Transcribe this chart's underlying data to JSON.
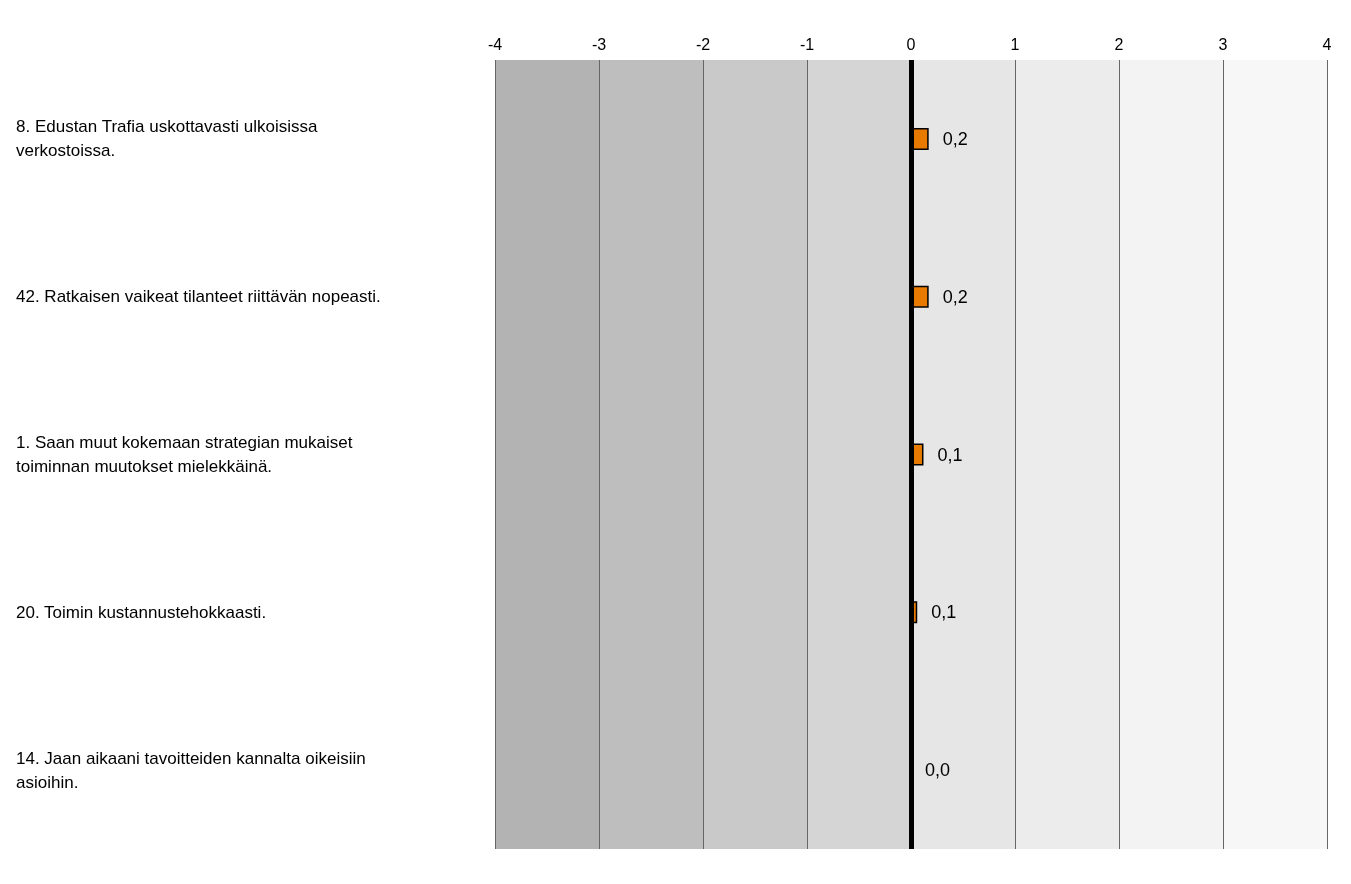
{
  "chart_data": {
    "type": "bar",
    "orientation": "horizontal",
    "categories": [
      "8. Edustan Trafia uskottavasti ulkoisissa verkostoissa.",
      "42. Ratkaisen vaikeat tilanteet riittävän nopeasti.",
      "1. Saan muut kokemaan strategian mukaiset toiminnan muutokset mielekkäinä.",
      "20. Toimin kustannustehokkaasti.",
      "14. Jaan aikaani tavoitteiden kannalta oikeisiin asioihin."
    ],
    "values": [
      0.17,
      0.17,
      0.12,
      0.06,
      0.0
    ],
    "value_labels": [
      "0,2",
      "0,2",
      "0,1",
      "0,1",
      "0,0"
    ],
    "color": "#e87a00",
    "xlim": [
      -4,
      4
    ],
    "xticks": [
      -4,
      -3,
      -2,
      -1,
      0,
      1,
      2,
      3,
      4
    ],
    "grid": "x",
    "ref_lines": [
      {
        "axis": "x",
        "value": 0,
        "color": "#000000"
      }
    ],
    "bands": [
      {
        "axis": "x",
        "from": -4,
        "to": -3,
        "color": "#b3b3b3"
      },
      {
        "axis": "x",
        "from": -3,
        "to": -2,
        "color": "#bebebe"
      },
      {
        "axis": "x",
        "from": -2,
        "to": -1,
        "color": "#c9c9c9"
      },
      {
        "axis": "x",
        "from": -1,
        "to": 0,
        "color": "#d5d5d5"
      },
      {
        "axis": "x",
        "from": 0,
        "to": 1,
        "color": "#e6e6e6"
      },
      {
        "axis": "x",
        "from": 1,
        "to": 2,
        "color": "#ececec"
      },
      {
        "axis": "x",
        "from": 2,
        "to": 3,
        "color": "#f3f3f3"
      },
      {
        "axis": "x",
        "from": 3,
        "to": 4,
        "color": "#f7f7f7"
      }
    ]
  }
}
